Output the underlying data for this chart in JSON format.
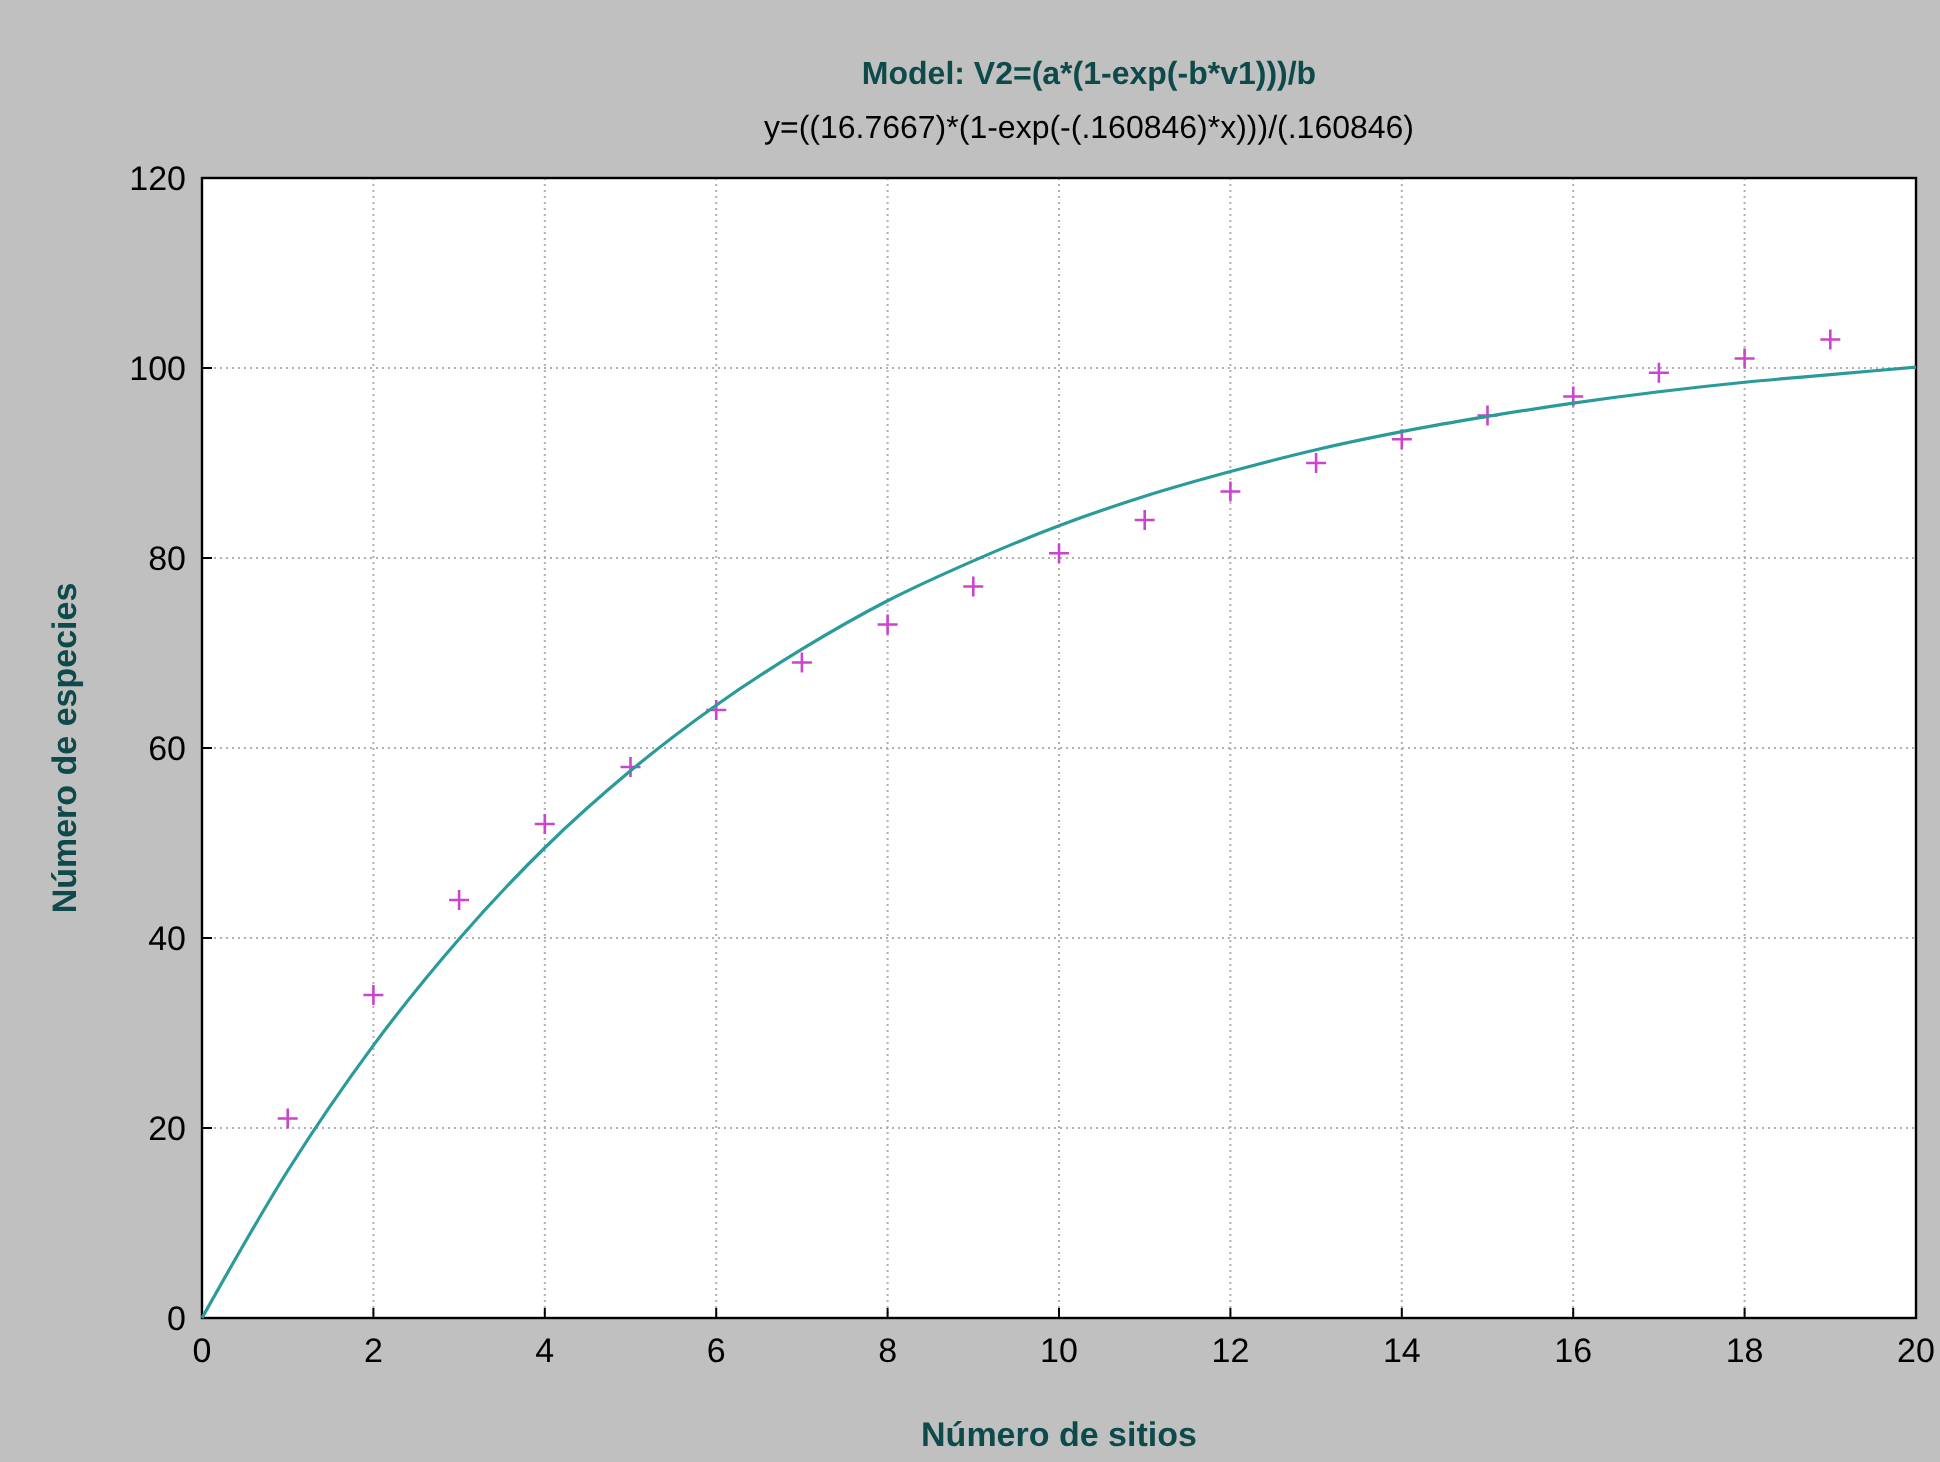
{
  "chart_data": {
    "type": "scatter",
    "title": "Model: V2=(a*(1-exp(-b*v1)))/b",
    "subtitle": "y=((16.7667)*(1-exp(-(.160846)*x)))/(.160846)",
    "xlabel": "Número de sitios",
    "ylabel": "Número de especies",
    "xlim": [
      0,
      20
    ],
    "ylim": [
      0,
      120
    ],
    "xticks": [
      0,
      2,
      4,
      6,
      8,
      10,
      12,
      14,
      16,
      18,
      20
    ],
    "yticks": [
      0,
      20,
      40,
      60,
      80,
      100,
      120
    ],
    "grid": true,
    "series": [
      {
        "color": "#cc44cc",
        "marker": "cross",
        "x": [
          1,
          2,
          3,
          4,
          5,
          6,
          7,
          8,
          9,
          10,
          11,
          12,
          13,
          14,
          15,
          16,
          17,
          18,
          19
        ],
        "values": [
          21,
          34,
          44,
          52,
          58,
          64,
          69,
          73,
          77,
          80.5,
          84,
          87,
          90,
          92.5,
          95,
          97,
          99.5,
          101,
          103
        ]
      },
      {
        "type": "line",
        "color": "#2a9a9a",
        "marker": "none",
        "line_style": "solid",
        "x": [
          0,
          1,
          2,
          3,
          4,
          5,
          6,
          7,
          8,
          9,
          10,
          11,
          12,
          13,
          14,
          15,
          16,
          17,
          18,
          19,
          20
        ],
        "values": [
          0,
          15.5,
          28.7,
          39.9,
          49.5,
          57.6,
          64.5,
          70.4,
          75.5,
          79.7,
          83.4,
          86.5,
          89.1,
          91.4,
          93.3,
          94.9,
          96.3,
          97.5,
          98.5,
          99.3,
          100.1
        ]
      }
    ]
  }
}
